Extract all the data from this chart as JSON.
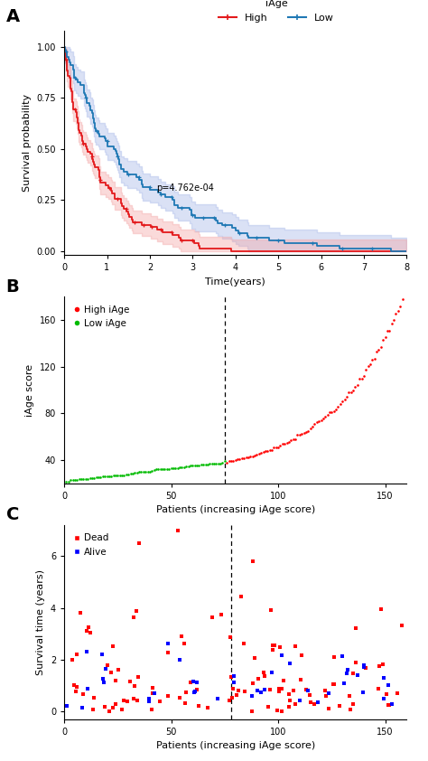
{
  "panel_A": {
    "title_label": "A",
    "legend_title": "iAge",
    "high_color": "#E31A1C",
    "low_color": "#1F78B4",
    "high_fill": "#F4A4A4",
    "low_fill": "#A4B4E8",
    "p_text": "p=4.762e-04",
    "ylabel": "Survival probability",
    "xlabel": "Time(years)",
    "xlim": [
      0,
      8
    ],
    "ylim": [
      -0.02,
      1.08
    ],
    "xticks": [
      0,
      1,
      2,
      3,
      4,
      5,
      6,
      7,
      8
    ],
    "yticks": [
      0.0,
      0.25,
      0.5,
      0.75,
      1.0
    ]
  },
  "panel_B": {
    "title_label": "B",
    "ylabel": "iAge score",
    "xlabel": "Patients (increasing iAge score)",
    "dashed_x": 75,
    "xlim": [
      0,
      160
    ],
    "ylim": [
      20,
      180
    ],
    "yticks": [
      40,
      80,
      120,
      160
    ],
    "xticks": [
      0,
      50,
      100,
      150
    ],
    "high_color": "#FF0000",
    "low_color": "#00BB00"
  },
  "panel_C": {
    "title_label": "C",
    "ylabel": "Survival time (years)",
    "xlabel": "Patients (increasing iAge score)",
    "dashed_x": 78,
    "xlim": [
      0,
      160
    ],
    "ylim": [
      -0.3,
      7.2
    ],
    "yticks": [
      0,
      2,
      4,
      6
    ],
    "xticks": [
      0,
      50,
      100,
      150
    ],
    "dead_color": "#FF0000",
    "alive_color": "#0000FF"
  }
}
